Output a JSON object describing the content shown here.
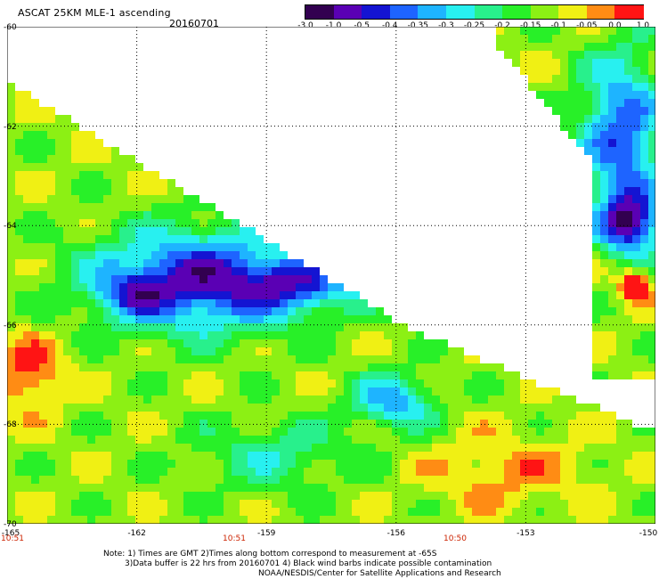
{
  "header": {
    "title": "ASCAT 25KM MLE-1 ascending",
    "date": "20160701"
  },
  "colorbar": {
    "colors": [
      "#320050",
      "#5a00b4",
      "#1414d2",
      "#1e64ff",
      "#1eb4ff",
      "#28f0f0",
      "#28f08c",
      "#28f028",
      "#8cf014",
      "#f0f014",
      "#ff8c14",
      "#ff1414"
    ],
    "ticks": [
      "-3.0",
      "-1.0",
      "-0.5",
      "-0.4",
      "-0.35",
      "-0.3",
      "-0.25",
      "-0.2",
      "-0.15",
      "-0.1",
      "-0.05",
      "0.0",
      "1.0"
    ]
  },
  "map": {
    "lat_range": [
      -70,
      -60
    ],
    "lon_range": [
      -165,
      -150
    ],
    "lat_labels": [
      "-60",
      "-62",
      "-64",
      "-66",
      "-68",
      "-70"
    ],
    "lon_labels": [
      "-165",
      "-162",
      "-159",
      "-156",
      "-153",
      "-150"
    ],
    "times": [
      "10:51",
      "10:51",
      "10:50"
    ]
  },
  "notes": {
    "line1": "Note: 1) Times are GMT 2)Times along bottom correspond to measurement at -65S",
    "line2": "3)Data buffer is 22 hrs from 20160701 4) Black wind barbs indicate possible contamination",
    "line3": "NOAA/NESDIS/Center for Satellite Applications and Research"
  }
}
